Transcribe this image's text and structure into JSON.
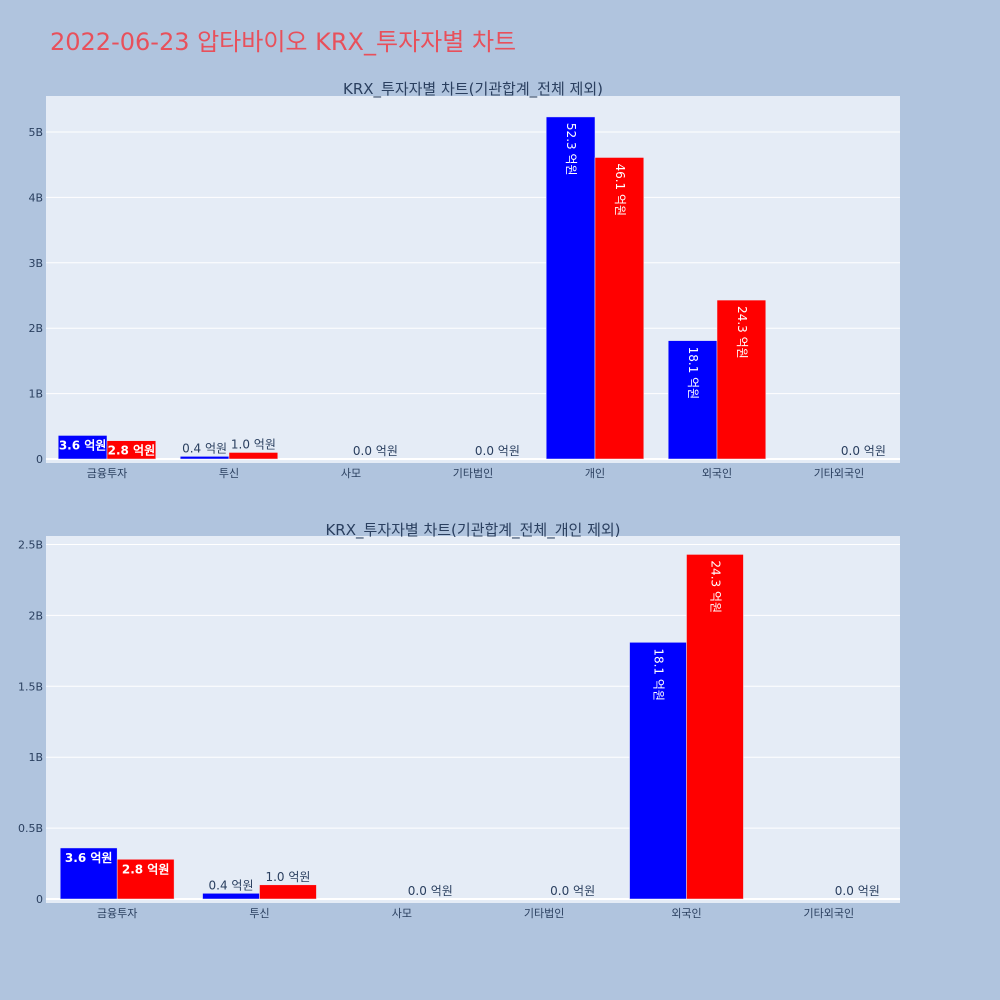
{
  "page_title": "2022-06-23 압타바이오 KRX_투자자별 차트",
  "chart_data": [
    {
      "type": "bar",
      "title": "KRX_투자자별 차트(기관합계_전체 제외)",
      "categories": [
        "금융투자",
        "투신",
        "사모",
        "기타법인",
        "개인",
        "외국인",
        "기타외국인"
      ],
      "series": [
        {
          "color": "#0000ff",
          "values": [
            360000000,
            40000000,
            0,
            0,
            5230000000,
            1810000000,
            0
          ]
        },
        {
          "color": "#ff0000",
          "values": [
            280000000,
            100000000,
            0,
            0,
            4610000000,
            2430000000,
            0
          ]
        }
      ],
      "labels": [
        [
          "3.6 억원",
          "0.4 억원",
          "",
          "",
          "52.3 억원",
          "18.1 억원",
          ""
        ],
        [
          "2.8 억원",
          "1.0 억원",
          "0.0 억원",
          "0.0 억원",
          "46.1 억원",
          "24.3 억원",
          "0.0 억원"
        ]
      ],
      "ylim": [
        0,
        5550000000
      ],
      "ytick_values": [
        0,
        1000000000,
        2000000000,
        3000000000,
        4000000000,
        5000000000
      ],
      "ytick_labels": [
        "0",
        "1B",
        "2B",
        "3B",
        "4B",
        "5B"
      ]
    },
    {
      "type": "bar",
      "title": "KRX_투자자별 차트(기관합계_전체_개인 제외)",
      "categories": [
        "금융투자",
        "투신",
        "사모",
        "기타법인",
        "외국인",
        "기타외국인"
      ],
      "series": [
        {
          "color": "#0000ff",
          "values": [
            360000000,
            40000000,
            0,
            0,
            1810000000,
            0
          ]
        },
        {
          "color": "#ff0000",
          "values": [
            280000000,
            100000000,
            0,
            0,
            2430000000,
            0
          ]
        }
      ],
      "labels": [
        [
          "3.6 억원",
          "0.4 억원",
          "",
          "",
          "18.1 억원",
          ""
        ],
        [
          "2.8 억원",
          "1.0 억원",
          "0.0 억원",
          "0.0 억원",
          "24.3 억원",
          "0.0 억원"
        ]
      ],
      "ylim": [
        0,
        2560000000
      ],
      "ytick_values": [
        0,
        500000000,
        1000000000,
        1500000000,
        2000000000,
        2500000000
      ],
      "ytick_labels": [
        "0",
        "0.5B",
        "1B",
        "1.5B",
        "2B",
        "2.5B"
      ]
    }
  ]
}
